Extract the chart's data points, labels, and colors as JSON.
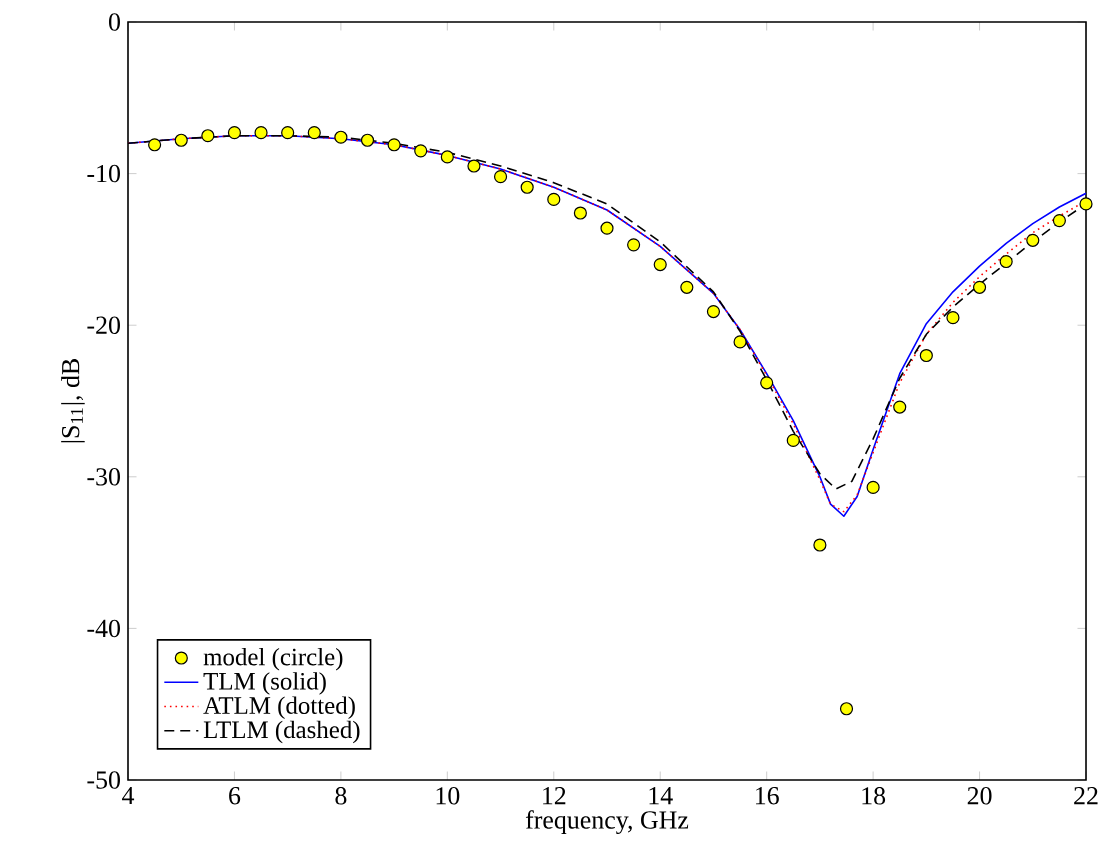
{
  "chart_data": {
    "type": "line",
    "xlabel": "frequency, GHz",
    "ylabel": "|S$_{11}$|, dB",
    "xlim": [
      4,
      22
    ],
    "ylim": [
      -50,
      0
    ],
    "xticks": [
      4,
      6,
      8,
      10,
      12,
      14,
      16,
      18,
      20,
      22
    ],
    "yticks": [
      -50,
      -40,
      -30,
      -20,
      -10,
      0
    ],
    "grid": false,
    "legend": "bottom left",
    "series": [
      {
        "name": "model (circle)",
        "type": "scatter",
        "marker": "circle",
        "color": "#ffff00",
        "x": [
          4.5,
          5,
          5.5,
          6,
          6.5,
          7,
          7.5,
          8,
          8.5,
          9,
          9.5,
          10,
          10.5,
          11,
          11.5,
          12,
          12.5,
          13,
          13.5,
          14,
          14.5,
          15,
          15.5,
          16,
          16.5,
          17,
          17.5,
          18,
          18.5,
          19,
          19.5,
          20,
          20.5,
          21,
          21.5,
          22
        ],
        "values": [
          -8.1,
          -7.8,
          -7.5,
          -7.3,
          -7.3,
          -7.3,
          -7.3,
          -7.6,
          -7.8,
          -8.1,
          -8.5,
          -8.9,
          -9.5,
          -10.2,
          -10.9,
          -11.7,
          -12.6,
          -13.6,
          -14.7,
          -16.0,
          -17.5,
          -19.1,
          -21.1,
          -23.8,
          -27.6,
          -34.5,
          -45.3,
          -30.7,
          -25.4,
          -22.0,
          -19.5,
          -17.5,
          -15.8,
          -14.4,
          -13.1,
          -12.0
        ]
      },
      {
        "name": "TLM (solid)",
        "type": "line",
        "line_style": "solid",
        "color": "#0000ff",
        "x": [
          4,
          5,
          6,
          7,
          8,
          9,
          10,
          11,
          12,
          13,
          14,
          15,
          15.5,
          16,
          16.5,
          17,
          17.2,
          17.45,
          17.7,
          18,
          18.5,
          19,
          19.5,
          20,
          20.5,
          21,
          21.5,
          22
        ],
        "values": [
          -8.0,
          -7.7,
          -7.5,
          -7.5,
          -7.7,
          -8.1,
          -8.8,
          -9.7,
          -10.9,
          -12.4,
          -14.8,
          -17.9,
          -20.3,
          -23.2,
          -26.3,
          -30.0,
          -31.8,
          -32.6,
          -31.3,
          -28.2,
          -23.2,
          -19.9,
          -17.8,
          -16.1,
          -14.6,
          -13.3,
          -12.2,
          -11.3
        ]
      },
      {
        "name": "ATLM (dotted)",
        "type": "line",
        "line_style": "dotted",
        "color": "#ff0000",
        "x": [
          4,
          5,
          6,
          7,
          8,
          9,
          10,
          11,
          12,
          13,
          14,
          15,
          15.5,
          16,
          16.5,
          17,
          17.2,
          17.45,
          17.7,
          18,
          18.5,
          19,
          19.5,
          20,
          20.5,
          21,
          21.5,
          22
        ],
        "values": [
          -8.0,
          -7.7,
          -7.5,
          -7.5,
          -7.7,
          -8.1,
          -8.8,
          -9.7,
          -10.9,
          -12.4,
          -14.8,
          -17.9,
          -20.3,
          -23.3,
          -26.5,
          -30.2,
          -31.8,
          -32.3,
          -31.2,
          -28.4,
          -23.8,
          -20.6,
          -18.5,
          -16.8,
          -15.3,
          -13.9,
          -12.8,
          -11.8
        ]
      },
      {
        "name": "LTLM (dashed)",
        "type": "line",
        "line_style": "dashed",
        "color": "#000000",
        "x": [
          4,
          5,
          6,
          7,
          8,
          9,
          10,
          11,
          12,
          13,
          14,
          15,
          15.5,
          16,
          16.5,
          17,
          17.3,
          17.6,
          18,
          18.5,
          19,
          19.5,
          20,
          20.5,
          21,
          21.5,
          22
        ],
        "values": [
          -8.0,
          -7.7,
          -7.5,
          -7.5,
          -7.6,
          -8.0,
          -8.6,
          -9.5,
          -10.6,
          -12.0,
          -14.5,
          -17.8,
          -20.4,
          -23.6,
          -27.0,
          -29.8,
          -30.8,
          -30.3,
          -27.5,
          -23.5,
          -20.6,
          -18.8,
          -17.3,
          -15.9,
          -14.5,
          -13.2,
          -12.0
        ]
      }
    ]
  }
}
